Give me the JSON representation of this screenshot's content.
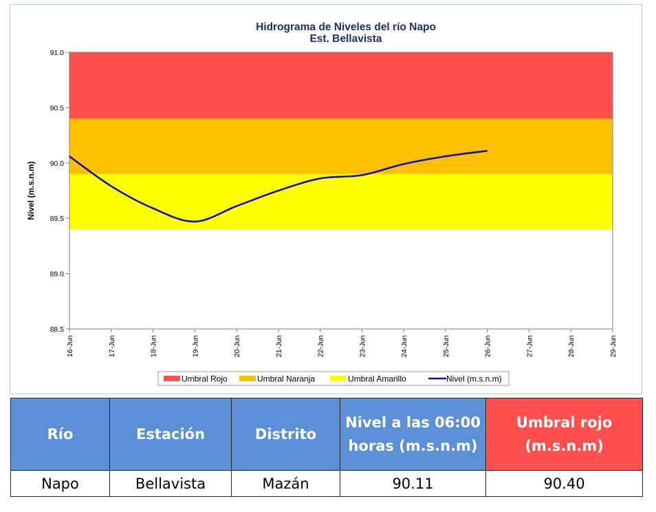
{
  "chart_data": {
    "type": "line",
    "title": [
      "Hidrograma de Niveles del río Napo",
      "Est. Bellavista"
    ],
    "ylabel": "Nivel (m.s.n.m)",
    "xlabel": "",
    "x_tick_labels": [
      "16-Jun",
      "17-Jun",
      "18-Jun",
      "19-Jun",
      "20-Jun",
      "21-Jun",
      "22-Jun",
      "23-Jun",
      "24-Jun",
      "25-Jun",
      "26-Jun",
      "27-Jun",
      "28-Jun",
      "29-Jun"
    ],
    "y_tick_labels": [
      "91.0",
      "90.5",
      "90.0",
      "89.5",
      "89.0",
      "88.5"
    ],
    "ylim": [
      88.5,
      91.0
    ],
    "xlim_days": [
      16,
      29
    ],
    "bands": [
      {
        "name": "Umbral Rojo",
        "from": 90.4,
        "to": 91.0,
        "color": "#ff5050"
      },
      {
        "name": "Umbral Naranja",
        "from": 89.9,
        "to": 90.4,
        "color": "#ffc000"
      },
      {
        "name": "Umbral Amarillo",
        "from": 89.4,
        "to": 89.9,
        "color": "#ffff00"
      }
    ],
    "series": [
      {
        "name": "Nivel (m.s.n.m)",
        "color": "#1010b0",
        "x": [
          "16-Jun",
          "17-Jun",
          "18-Jun",
          "19-Jun",
          "20-Jun",
          "21-Jun",
          "22-Jun",
          "23-Jun",
          "24-Jun",
          "25-Jun",
          "26-Jun"
        ],
        "x_day": [
          16,
          17,
          18,
          19,
          20,
          21,
          22,
          23,
          24,
          25,
          26
        ],
        "values": [
          90.06,
          89.79,
          89.59,
          89.47,
          89.61,
          89.75,
          89.86,
          89.89,
          89.99,
          90.06,
          90.11
        ]
      }
    ],
    "legend": [
      "Umbral Rojo",
      "Umbral Naranja",
      "Umbral Amarillo",
      "Nivel (m.s.n.m)"
    ],
    "legend_position": "bottom",
    "grid": false
  },
  "table": {
    "headers": [
      "Río",
      "Estación",
      "Distrito",
      "Nivel a las 06:00 horas (m.s.n.m)",
      "Umbral rojo (m.s.n.m)"
    ],
    "rows": [
      [
        "Napo",
        "Bellavista",
        "Mazán",
        "90.11",
        "90.40"
      ]
    ]
  },
  "colors": {
    "header_blue": "#5b8fd6",
    "header_red": "#ff4f4f",
    "title": "#1f2d6e"
  }
}
